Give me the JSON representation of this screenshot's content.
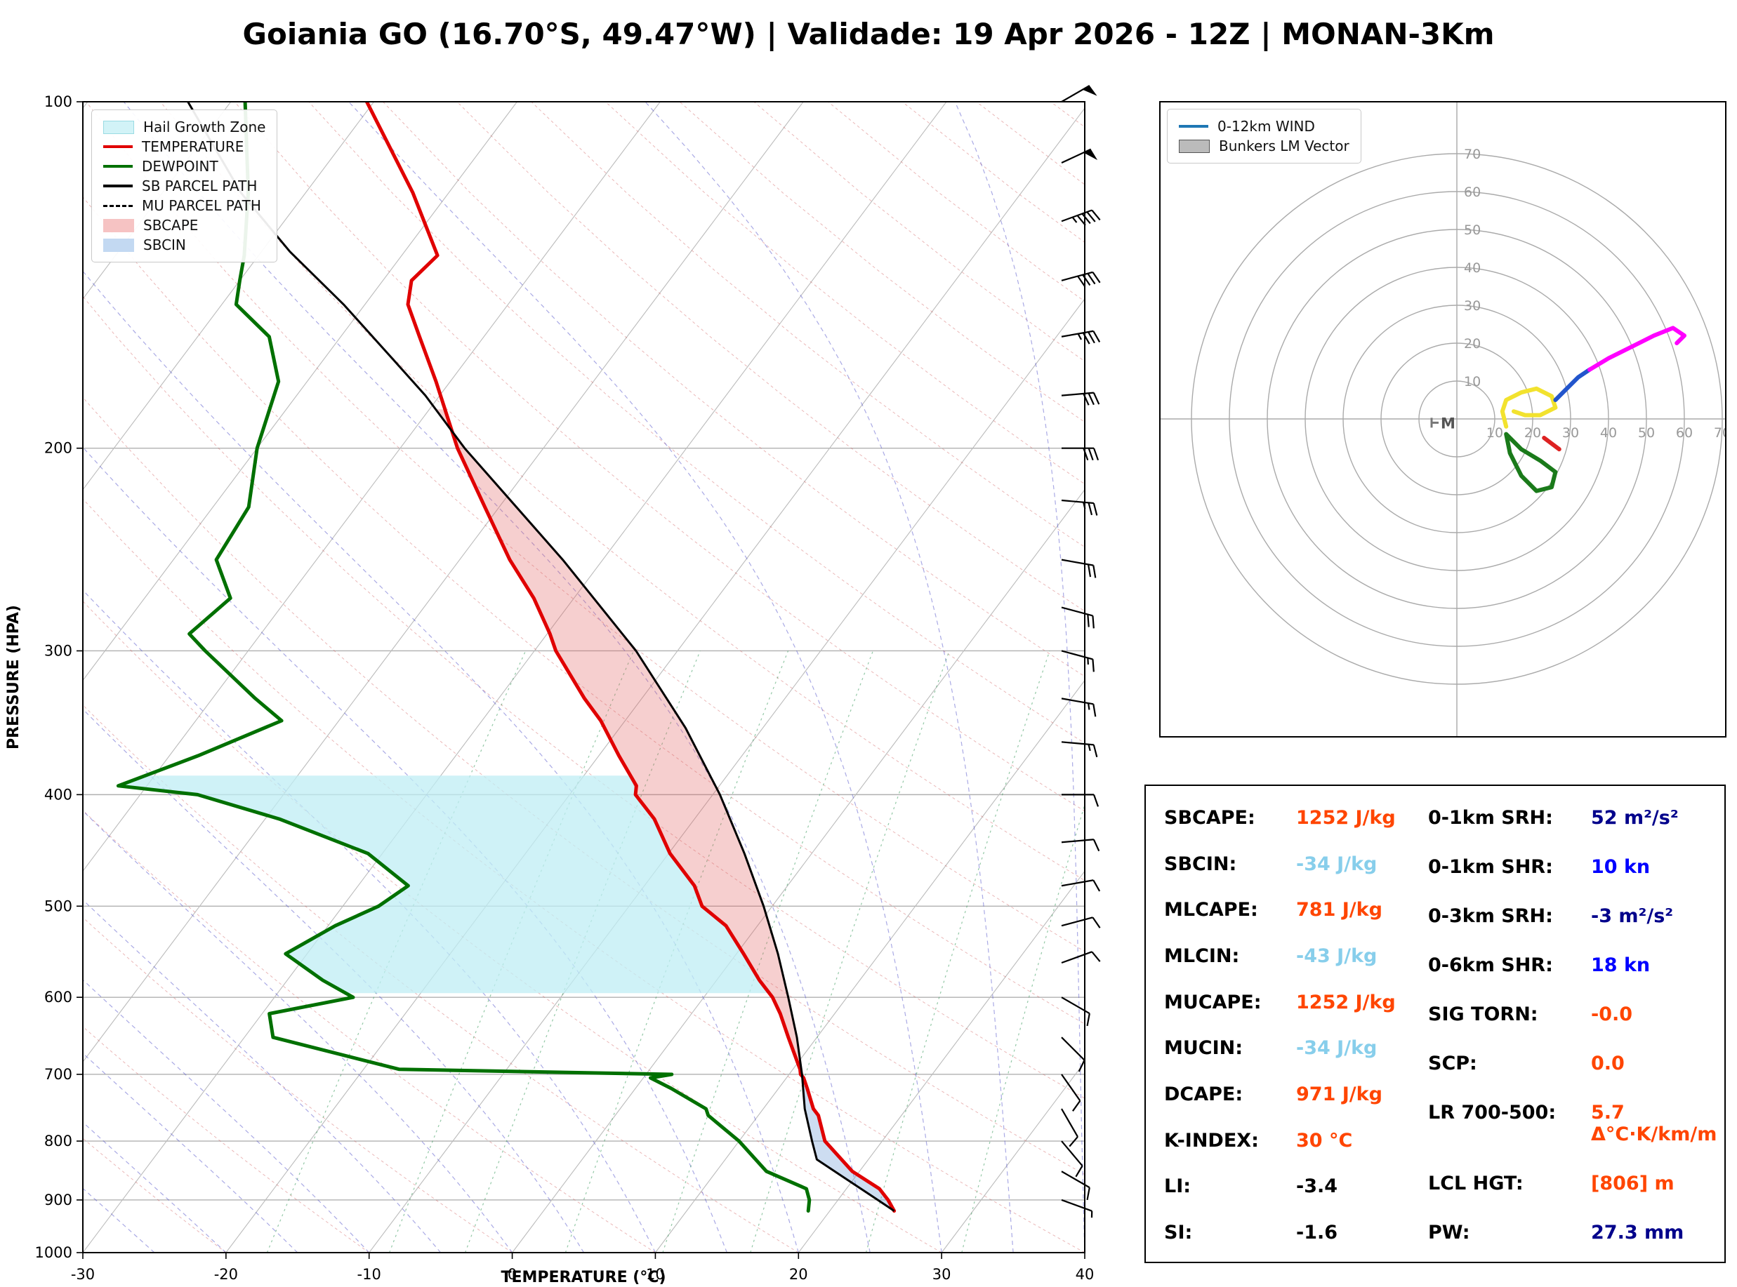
{
  "title": "Goiania GO (16.70°S, 49.47°W) | Validade: 19 Apr 2026 - 12Z | MONAN-3Km",
  "chart_data": {
    "type": "skewt_log_p_sounding",
    "skewt": {
      "xlabel": "TEMPERATURE (°C)",
      "ylabel": "PRESSURE (HPA)",
      "x_ticks": [
        -30,
        -20,
        -10,
        0,
        10,
        20,
        30,
        40
      ],
      "y_ticks": [
        100,
        200,
        300,
        400,
        500,
        600,
        700,
        800,
        900,
        1000
      ],
      "x_range_c": [
        -30,
        40
      ],
      "p_range_hpa": [
        100,
        1000
      ],
      "legend": [
        {
          "label": "Hail Growth Zone",
          "type": "patch",
          "color": "#d2f3f7",
          "edge": "#9adbe3"
        },
        {
          "label": "TEMPERATURE",
          "type": "line",
          "color": "#e00000"
        },
        {
          "label": "DEWPOINT",
          "type": "line",
          "color": "#007000"
        },
        {
          "label": "SB PARCEL PATH",
          "type": "line",
          "color": "#000000"
        },
        {
          "label": "MU PARCEL PATH",
          "type": "dashed",
          "color": "#000000"
        },
        {
          "label": "SBCAPE",
          "type": "patch",
          "color": "#f6c3c3",
          "edge": "#f6c3c3"
        },
        {
          "label": "SBCIN",
          "type": "patch",
          "color": "#c3d9f2",
          "edge": "#c3d9f2"
        }
      ],
      "levels_p_t_td": [
        [
          920,
          24.5,
          18.5
        ],
        [
          900,
          23.5,
          18.0
        ],
        [
          880,
          22.3,
          17.2
        ],
        [
          850,
          19.5,
          13.5
        ],
        [
          800,
          16.0,
          10.0
        ],
        [
          760,
          14.2,
          6.5
        ],
        [
          750,
          13.5,
          6.0
        ],
        [
          720,
          12.0,
          2.5
        ],
        [
          705,
          11.2,
          0.5
        ],
        [
          700,
          10.8,
          1.8
        ],
        [
          693,
          10.5,
          -17.5
        ],
        [
          650,
          8.0,
          -28.0
        ],
        [
          620,
          6.2,
          -29.5
        ],
        [
          600,
          4.8,
          -24.5
        ],
        [
          580,
          3.0,
          -27.5
        ],
        [
          550,
          0.5,
          -31.5
        ],
        [
          520,
          -2.2,
          -29.5
        ],
        [
          500,
          -4.9,
          -27.5
        ],
        [
          480,
          -6.5,
          -26.5
        ],
        [
          450,
          -9.9,
          -31.0
        ],
        [
          420,
          -12.8,
          -39.0
        ],
        [
          400,
          -15.4,
          -46.0
        ],
        [
          393,
          -15.8,
          -52.0
        ],
        [
          370,
          -18.6,
          -48.0
        ],
        [
          345,
          -21.7,
          -44.0
        ],
        [
          330,
          -24.0,
          -47.0
        ],
        [
          300,
          -28.5,
          -53.0
        ],
        [
          290,
          -29.8,
          -55.0
        ],
        [
          270,
          -32.8,
          -54.0
        ],
        [
          250,
          -36.5,
          -57.0
        ],
        [
          225,
          -41.0,
          -57.5
        ],
        [
          200,
          -46.0,
          -60.0
        ],
        [
          175,
          -51.0,
          -62.0
        ],
        [
          160,
          -54.5,
          -65.0
        ],
        [
          150,
          -57.0,
          -69.0
        ],
        [
          143,
          -58.0,
          -70.0
        ],
        [
          136,
          -57.5,
          -71.0
        ],
        [
          120,
          -62.5,
          -74.0
        ],
        [
          100,
          -70.5,
          -79.0
        ]
      ],
      "parcel_p_t": [
        [
          920,
          24.5
        ],
        [
          890,
          21.9
        ],
        [
          860,
          19.2
        ],
        [
          830,
          16.4
        ],
        [
          800,
          15.1
        ],
        [
          750,
          12.9
        ],
        [
          700,
          10.9
        ],
        [
          650,
          8.6
        ],
        [
          600,
          5.9
        ],
        [
          550,
          2.9
        ],
        [
          500,
          -0.6
        ],
        [
          450,
          -4.7
        ],
        [
          400,
          -9.5
        ],
        [
          350,
          -15.4
        ],
        [
          300,
          -22.9
        ],
        [
          250,
          -32.8
        ],
        [
          200,
          -45.5
        ],
        [
          180,
          -51.0
        ],
        [
          165,
          -56.0
        ],
        [
          150,
          -61.5
        ],
        [
          135,
          -68.0
        ],
        [
          120,
          -74.5
        ],
        [
          100,
          -83.0
        ]
      ],
      "cape_p_range": [
        700,
        185
      ],
      "cin_p_range": [
        918,
        702
      ],
      "hail_zone_p_range": [
        595,
        385
      ],
      "wind_barbs_p_spd_dir": [
        [
          100,
          50,
          60
        ],
        [
          113,
          50,
          65
        ],
        [
          127,
          45,
          70
        ],
        [
          143,
          40,
          75
        ],
        [
          160,
          35,
          80
        ],
        [
          180,
          30,
          85
        ],
        [
          200,
          30,
          90
        ],
        [
          222,
          25,
          95
        ],
        [
          250,
          20,
          100
        ],
        [
          275,
          20,
          105
        ],
        [
          300,
          15,
          105
        ],
        [
          330,
          15,
          100
        ],
        [
          360,
          15,
          95
        ],
        [
          400,
          10,
          90
        ],
        [
          440,
          10,
          85
        ],
        [
          480,
          10,
          80
        ],
        [
          520,
          10,
          75
        ],
        [
          560,
          10,
          70
        ],
        [
          600,
          10,
          120
        ],
        [
          650,
          8,
          135
        ],
        [
          700,
          8,
          145
        ],
        [
          750,
          10,
          150
        ],
        [
          800,
          8,
          140
        ],
        [
          850,
          8,
          120
        ],
        [
          900,
          5,
          110
        ]
      ],
      "moist_adiabat_starts_c": [
        -40,
        -35,
        -30,
        -25,
        -20,
        -15,
        -10,
        -5,
        0,
        5,
        10,
        15,
        20,
        25,
        30,
        35,
        40,
        45
      ],
      "dry_adiabat_theta_c": [
        -30,
        -20,
        -10,
        0,
        10,
        20,
        30,
        40,
        50,
        60,
        70,
        80,
        90,
        100,
        110,
        120,
        130,
        140,
        150,
        160,
        170,
        180,
        190,
        200,
        210,
        220,
        230,
        240
      ],
      "mixing_ratio_g_kg": [
        1,
        2,
        3,
        5,
        8,
        12,
        20,
        30
      ]
    },
    "hodograph": {
      "legend": [
        {
          "label": "0-12km WIND",
          "type": "line",
          "color": "#1f77b4"
        },
        {
          "label": "Bunkers LM Vector",
          "type": "patch",
          "color": "#bbbbbb",
          "edge": "#555555"
        }
      ],
      "ring_interval_kn": 10,
      "ring_labels": [
        10,
        20,
        30,
        40,
        50,
        60,
        70
      ],
      "segments": [
        {
          "name": "wind-0-3km",
          "color": "#1a7a1a",
          "points": [
            [
              13,
              -4
            ],
            [
              17,
              -8
            ],
            [
              22,
              -11
            ],
            [
              26,
              -14
            ],
            [
              25,
              -18
            ],
            [
              21,
              -19
            ],
            [
              17,
              -15
            ],
            [
              14,
              -9
            ],
            [
              13,
              -4
            ]
          ]
        },
        {
          "name": "wind-3-6km",
          "color": "#f2e22e",
          "points": [
            [
              13,
              -2
            ],
            [
              12,
              2
            ],
            [
              13,
              5
            ],
            [
              17,
              7
            ],
            [
              21,
              8
            ],
            [
              25,
              6
            ],
            [
              26,
              3
            ],
            [
              22,
              1
            ],
            [
              18,
              1
            ],
            [
              15,
              2
            ]
          ]
        },
        {
          "name": "wind-6-9km",
          "color": "#2255cc",
          "points": [
            [
              26,
              5
            ],
            [
              29,
              8
            ],
            [
              32,
              11
            ],
            [
              35,
              13
            ]
          ]
        },
        {
          "name": "wind-9-12km",
          "color": "#ff00ff",
          "points": [
            [
              35,
              13
            ],
            [
              40,
              16
            ],
            [
              46,
              19
            ],
            [
              52,
              22
            ],
            [
              57,
              24
            ],
            [
              60,
              22
            ],
            [
              58,
              20
            ]
          ]
        },
        {
          "name": "storm-motion",
          "color": "#dd2222",
          "points": [
            [
              23,
              -5
            ],
            [
              27,
              -8
            ]
          ]
        }
      ],
      "lm_marker": {
        "label": "LM",
        "u": -5,
        "v": -1
      }
    }
  },
  "stats": {
    "left": [
      {
        "label": "SBCAPE:",
        "value": "1252 J/kg",
        "color": "orange"
      },
      {
        "label": "SBCIN:",
        "value": "-34 J/kg",
        "color": "lightblue"
      },
      {
        "label": "MLCAPE:",
        "value": "781 J/kg",
        "color": "orange"
      },
      {
        "label": "MLCIN:",
        "value": "-43 J/kg",
        "color": "lightblue"
      },
      {
        "label": "MUCAPE:",
        "value": "1252 J/kg",
        "color": "orange"
      },
      {
        "label": "MUCIN:",
        "value": "-34 J/kg",
        "color": "lightblue"
      },
      {
        "label": "DCAPE:",
        "value": "971 J/kg",
        "color": "orange"
      },
      {
        "label": "K-INDEX:",
        "value": "30 °C",
        "color": "orange"
      },
      {
        "label": "LI:",
        "value": "-3.4",
        "color": "black"
      },
      {
        "label": "SI:",
        "value": "-1.6",
        "color": "black"
      }
    ],
    "right": [
      {
        "label": "0-1km SRH:",
        "value": "52 m²/s²",
        "color": "navy"
      },
      {
        "label": "0-1km SHR:",
        "value": "10 kn",
        "color": "blue"
      },
      {
        "label": "0-3km SRH:",
        "value": "-3 m²/s²",
        "color": "navy"
      },
      {
        "label": "0-6km SHR:",
        "value": "18 kn",
        "color": "blue"
      },
      {
        "label": "SIG TORN:",
        "value": "-0.0",
        "color": "orange"
      },
      {
        "label": "SCP:",
        "value": "0.0",
        "color": "orange"
      },
      {
        "label": "LR 700-500:",
        "value": "5.7 Δ°C·K/km/m",
        "color": "orange"
      },
      {
        "label": "LCL HGT:",
        "value": "[806] m",
        "color": "orange"
      },
      {
        "label": "PW:",
        "value": "27.3 mm",
        "color": "navy"
      }
    ]
  }
}
